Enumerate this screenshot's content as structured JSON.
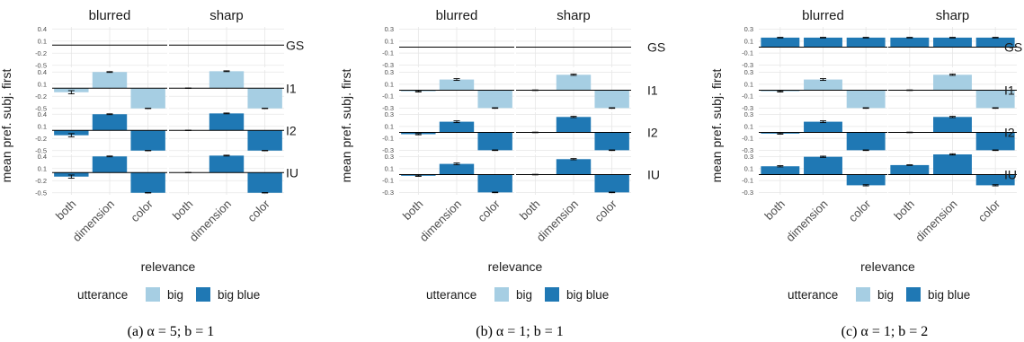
{
  "colors": {
    "big": "#a6cee3",
    "big_blue": "#1f78b4",
    "grid": "#e6e6e6",
    "zero": "#000000",
    "text": "#1a1a1a"
  },
  "shared": {
    "columns": [
      "blurred",
      "sharp"
    ],
    "rows": [
      "GS",
      "I1",
      "I2",
      "IU"
    ],
    "categories": [
      "both",
      "dimension",
      "color"
    ],
    "ylabel": "mean pref. subj. first",
    "xlabel": "relevance",
    "legend_title": "utterance",
    "legend_items": [
      "big",
      "big blue"
    ]
  },
  "chart_data": [
    {
      "type": "bar",
      "caption": "(a) α = 5; b = 1",
      "rows": [
        {
          "name": "GS",
          "ticks": [
            "0.4",
            "0.1",
            "-0.2",
            "-0.5"
          ],
          "tick_values": [
            0.4,
            0.1,
            -0.2,
            -0.5
          ],
          "ylim": [
            -0.55,
            0.45
          ],
          "bars": {
            "blurred": [
              {
                "utt": "big",
                "v": 0.0,
                "err": 0
              },
              {
                "utt": "big",
                "v": 0.0,
                "err": 0
              },
              {
                "utt": "big",
                "v": 0.0,
                "err": 0
              }
            ],
            "sharp": [
              {
                "utt": "big",
                "v": 0.0,
                "err": 0
              },
              {
                "utt": "big",
                "v": 0.0,
                "err": 0
              },
              {
                "utt": "big",
                "v": 0.0,
                "err": 0
              }
            ]
          }
        },
        {
          "name": "I1",
          "ticks": [
            "0.4",
            "0.1",
            "-0.2",
            "-0.5"
          ],
          "tick_values": [
            0.4,
            0.1,
            -0.2,
            -0.5
          ],
          "ylim": [
            -0.55,
            0.45
          ],
          "bars": {
            "blurred": [
              {
                "utt": "big",
                "v": -0.1,
                "err": 0.04
              },
              {
                "utt": "big",
                "v": 0.4,
                "err": 0.01
              },
              {
                "utt": "big",
                "v": -0.5,
                "err": 0.005
              }
            ],
            "sharp": [
              {
                "utt": "big",
                "v": 0.0,
                "err": 0.005
              },
              {
                "utt": "big",
                "v": 0.42,
                "err": 0.01
              },
              {
                "utt": "big",
                "v": -0.5,
                "err": 0.005
              }
            ]
          }
        },
        {
          "name": "I2",
          "ticks": [
            "0.4",
            "0.1",
            "-0.2",
            "-0.5"
          ],
          "tick_values": [
            0.4,
            0.1,
            -0.2,
            -0.5
          ],
          "ylim": [
            -0.55,
            0.45
          ],
          "bars": {
            "blurred": [
              {
                "utt": "big blue",
                "v": -0.12,
                "err": 0.04
              },
              {
                "utt": "big blue",
                "v": 0.4,
                "err": 0.01
              },
              {
                "utt": "big blue",
                "v": -0.5,
                "err": 0.005
              }
            ],
            "sharp": [
              {
                "utt": "big blue",
                "v": 0.0,
                "err": 0.005
              },
              {
                "utt": "big blue",
                "v": 0.42,
                "err": 0.01
              },
              {
                "utt": "big blue",
                "v": -0.5,
                "err": 0.005
              }
            ]
          }
        },
        {
          "name": "IU",
          "ticks": [
            "0.4",
            "0.1",
            "-0.2",
            "-0.5"
          ],
          "tick_values": [
            0.4,
            0.1,
            -0.2,
            -0.5
          ],
          "ylim": [
            -0.55,
            0.45
          ],
          "bars": {
            "blurred": [
              {
                "utt": "big blue",
                "v": -0.1,
                "err": 0.04
              },
              {
                "utt": "big blue",
                "v": 0.4,
                "err": 0.01
              },
              {
                "utt": "big blue",
                "v": -0.5,
                "err": 0.005
              }
            ],
            "sharp": [
              {
                "utt": "big blue",
                "v": 0.0,
                "err": 0.005
              },
              {
                "utt": "big blue",
                "v": 0.42,
                "err": 0.01
              },
              {
                "utt": "big blue",
                "v": -0.5,
                "err": 0.005
              }
            ]
          }
        }
      ]
    },
    {
      "type": "bar",
      "caption": "(b) α = 1; b = 1",
      "rows": [
        {
          "name": "GS",
          "ticks": [
            "0.3",
            "0.1",
            "-0.1",
            "-0.3"
          ],
          "tick_values": [
            0.3,
            0.1,
            -0.1,
            -0.3
          ],
          "ylim": [
            -0.34,
            0.34
          ],
          "bars": {
            "blurred": [
              {
                "utt": "big",
                "v": 0.0,
                "err": 0
              },
              {
                "utt": "big",
                "v": 0.0,
                "err": 0
              },
              {
                "utt": "big",
                "v": 0.0,
                "err": 0
              }
            ],
            "sharp": [
              {
                "utt": "big",
                "v": 0.0,
                "err": 0
              },
              {
                "utt": "big",
                "v": 0.0,
                "err": 0
              },
              {
                "utt": "big",
                "v": 0.0,
                "err": 0
              }
            ]
          }
        },
        {
          "name": "I1",
          "ticks": [
            "0.3",
            "0.1",
            "-0.1",
            "-0.3"
          ],
          "tick_values": [
            0.3,
            0.1,
            -0.1,
            -0.3
          ],
          "ylim": [
            -0.34,
            0.34
          ],
          "bars": {
            "blurred": [
              {
                "utt": "big",
                "v": -0.02,
                "err": 0.01
              },
              {
                "utt": "big",
                "v": 0.18,
                "err": 0.015
              },
              {
                "utt": "big",
                "v": -0.3,
                "err": 0.005
              }
            ],
            "sharp": [
              {
                "utt": "big",
                "v": 0.0,
                "err": 0.005
              },
              {
                "utt": "big",
                "v": 0.26,
                "err": 0.01
              },
              {
                "utt": "big",
                "v": -0.3,
                "err": 0.005
              }
            ]
          }
        },
        {
          "name": "I2",
          "ticks": [
            "0.3",
            "0.1",
            "-0.1",
            "-0.3"
          ],
          "tick_values": [
            0.3,
            0.1,
            -0.1,
            -0.3
          ],
          "ylim": [
            -0.34,
            0.34
          ],
          "bars": {
            "blurred": [
              {
                "utt": "big blue",
                "v": -0.03,
                "err": 0.01
              },
              {
                "utt": "big blue",
                "v": 0.18,
                "err": 0.015
              },
              {
                "utt": "big blue",
                "v": -0.3,
                "err": 0.005
              }
            ],
            "sharp": [
              {
                "utt": "big blue",
                "v": 0.0,
                "err": 0.005
              },
              {
                "utt": "big blue",
                "v": 0.26,
                "err": 0.01
              },
              {
                "utt": "big blue",
                "v": -0.3,
                "err": 0.005
              }
            ]
          }
        },
        {
          "name": "IU",
          "ticks": [
            "0.3",
            "0.1",
            "-0.1",
            "-0.3"
          ],
          "tick_values": [
            0.3,
            0.1,
            -0.1,
            -0.3
          ],
          "ylim": [
            -0.34,
            0.34
          ],
          "bars": {
            "blurred": [
              {
                "utt": "big blue",
                "v": -0.02,
                "err": 0.01
              },
              {
                "utt": "big blue",
                "v": 0.18,
                "err": 0.015
              },
              {
                "utt": "big blue",
                "v": -0.3,
                "err": 0.005
              }
            ],
            "sharp": [
              {
                "utt": "big blue",
                "v": 0.0,
                "err": 0.005
              },
              {
                "utt": "big blue",
                "v": 0.26,
                "err": 0.01
              },
              {
                "utt": "big blue",
                "v": -0.3,
                "err": 0.005
              }
            ]
          }
        }
      ]
    },
    {
      "type": "bar",
      "caption": "(c) α = 1; b = 2",
      "rows": [
        {
          "name": "GS",
          "ticks": [
            "0.3",
            "0.1",
            "-0.1",
            "-0.3"
          ],
          "tick_values": [
            0.3,
            0.1,
            -0.1,
            -0.3
          ],
          "ylim": [
            -0.34,
            0.34
          ],
          "bars": {
            "blurred": [
              {
                "utt": "big blue",
                "v": 0.16,
                "err": 0.005
              },
              {
                "utt": "big blue",
                "v": 0.16,
                "err": 0.005
              },
              {
                "utt": "big blue",
                "v": 0.16,
                "err": 0.005
              }
            ],
            "sharp": [
              {
                "utt": "big blue",
                "v": 0.16,
                "err": 0.005
              },
              {
                "utt": "big blue",
                "v": 0.16,
                "err": 0.005
              },
              {
                "utt": "big blue",
                "v": 0.16,
                "err": 0.005
              }
            ]
          }
        },
        {
          "name": "I1",
          "ticks": [
            "0.3",
            "0.1",
            "-0.1",
            "-0.3"
          ],
          "tick_values": [
            0.3,
            0.1,
            -0.1,
            -0.3
          ],
          "ylim": [
            -0.34,
            0.34
          ],
          "bars": {
            "blurred": [
              {
                "utt": "big",
                "v": -0.02,
                "err": 0.01
              },
              {
                "utt": "big",
                "v": 0.18,
                "err": 0.015
              },
              {
                "utt": "big",
                "v": -0.3,
                "err": 0.005
              }
            ],
            "sharp": [
              {
                "utt": "big",
                "v": 0.0,
                "err": 0.005
              },
              {
                "utt": "big",
                "v": 0.26,
                "err": 0.01
              },
              {
                "utt": "big",
                "v": -0.3,
                "err": 0.005
              }
            ]
          }
        },
        {
          "name": "I2",
          "ticks": [
            "0.3",
            "0.1",
            "-0.1",
            "-0.3"
          ],
          "tick_values": [
            0.3,
            0.1,
            -0.1,
            -0.3
          ],
          "ylim": [
            -0.34,
            0.34
          ],
          "bars": {
            "blurred": [
              {
                "utt": "big blue",
                "v": -0.02,
                "err": 0.01
              },
              {
                "utt": "big blue",
                "v": 0.18,
                "err": 0.015
              },
              {
                "utt": "big blue",
                "v": -0.3,
                "err": 0.005
              }
            ],
            "sharp": [
              {
                "utt": "big blue",
                "v": 0.0,
                "err": 0.005
              },
              {
                "utt": "big blue",
                "v": 0.26,
                "err": 0.01
              },
              {
                "utt": "big blue",
                "v": -0.3,
                "err": 0.005
              }
            ]
          }
        },
        {
          "name": "IU",
          "ticks": [
            "0.3",
            "0.1",
            "-0.1",
            "-0.3"
          ],
          "tick_values": [
            0.3,
            0.1,
            -0.1,
            -0.3
          ],
          "ylim": [
            -0.34,
            0.34
          ],
          "bars": {
            "blurred": [
              {
                "utt": "big blue",
                "v": 0.14,
                "err": 0.01
              },
              {
                "utt": "big blue",
                "v": 0.3,
                "err": 0.01
              },
              {
                "utt": "big blue",
                "v": -0.18,
                "err": 0.01
              }
            ],
            "sharp": [
              {
                "utt": "big blue",
                "v": 0.16,
                "err": 0.005
              },
              {
                "utt": "big blue",
                "v": 0.34,
                "err": 0.01
              },
              {
                "utt": "big blue",
                "v": -0.18,
                "err": 0.01
              }
            ]
          }
        }
      ]
    }
  ]
}
